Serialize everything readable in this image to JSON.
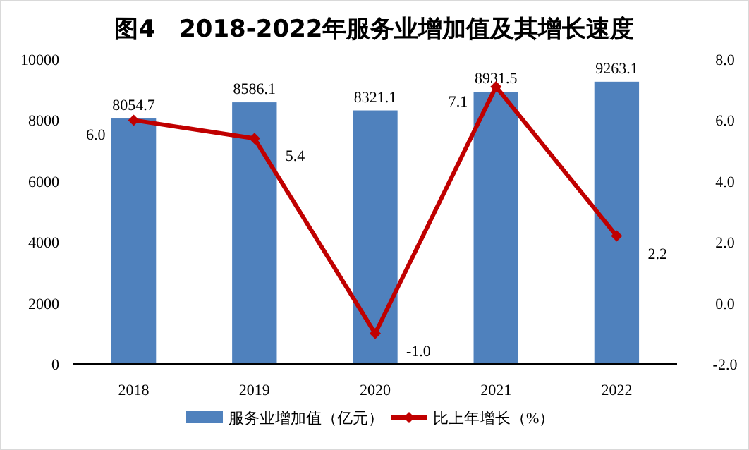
{
  "chart_data": {
    "type": "bar",
    "title": "图4　2018-2022年服务业增加值及其增长速度",
    "categories": [
      "2018",
      "2019",
      "2020",
      "2021",
      "2022"
    ],
    "series": [
      {
        "name": "服务业增加值（亿元）",
        "color": "#4f81bd",
        "values": [
          8054.7,
          8586.1,
          8321.1,
          8931.5,
          9263.1
        ]
      },
      {
        "name": "比上年增长（%）",
        "type": "line",
        "axis": "y2",
        "color": "#c00000",
        "marker": "diamond",
        "values": [
          6.0,
          5.4,
          -1.0,
          7.1,
          2.2
        ],
        "value_labels": [
          "6.0",
          "5.4",
          "-1.0",
          "7.1",
          "2.2"
        ]
      }
    ],
    "ylim": [
      0,
      10000
    ],
    "yticks": [
      0,
      2000,
      4000,
      6000,
      8000,
      10000
    ],
    "y2lim": [
      -2,
      8
    ],
    "y2ticks": [
      {
        "value": -2,
        "label": "-2.0"
      },
      {
        "value": 0,
        "label": "0.0"
      },
      {
        "value": 2,
        "label": "2.0"
      },
      {
        "value": 4,
        "label": "4.0"
      },
      {
        "value": 6,
        "label": "6.0"
      },
      {
        "value": 8,
        "label": "8.0"
      }
    ],
    "data_labels": true,
    "legend": "bottom",
    "grid": false
  }
}
